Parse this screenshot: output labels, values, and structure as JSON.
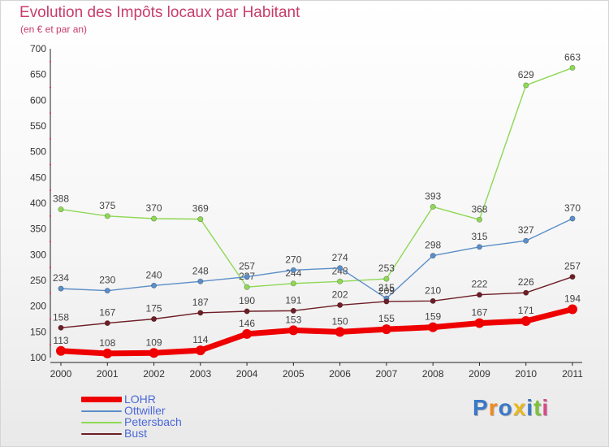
{
  "title": "Evolution des Impôts locaux par Habitant",
  "subtitle": "(en € et par an)",
  "logo_text": "Proxiti",
  "chart_data": {
    "type": "line",
    "title": "Evolution des Impôts locaux par Habitant",
    "subtitle": "(en € et par an)",
    "xlabel": "",
    "ylabel": "",
    "categories": [
      "2000",
      "2001",
      "2002",
      "2003",
      "2004",
      "2005",
      "2006",
      "2007",
      "2008",
      "2009",
      "2010",
      "2011"
    ],
    "ylim": [
      100,
      700
    ],
    "yticks": [
      100,
      150,
      200,
      250,
      300,
      350,
      400,
      450,
      500,
      550,
      600,
      650,
      700
    ],
    "grid": false,
    "legend_position": "bottom-left",
    "series": [
      {
        "name": "LOHR",
        "color": "#ee0000",
        "values": [
          113,
          108,
          109,
          114,
          146,
          153,
          150,
          155,
          159,
          167,
          171,
          194
        ]
      },
      {
        "name": "Ottwiller",
        "color": "#5b8ec8",
        "values": [
          234,
          230,
          240,
          248,
          257,
          270,
          274,
          215,
          298,
          315,
          327,
          370
        ]
      },
      {
        "name": "Petersbach",
        "color": "#8ed855",
        "values": [
          388,
          375,
          370,
          369,
          237,
          244,
          248,
          253,
          393,
          368,
          629,
          663
        ]
      },
      {
        "name": "Bust",
        "color": "#6e1e26",
        "values": [
          158,
          167,
          175,
          187,
          190,
          191,
          202,
          209,
          210,
          222,
          226,
          257
        ]
      }
    ]
  }
}
